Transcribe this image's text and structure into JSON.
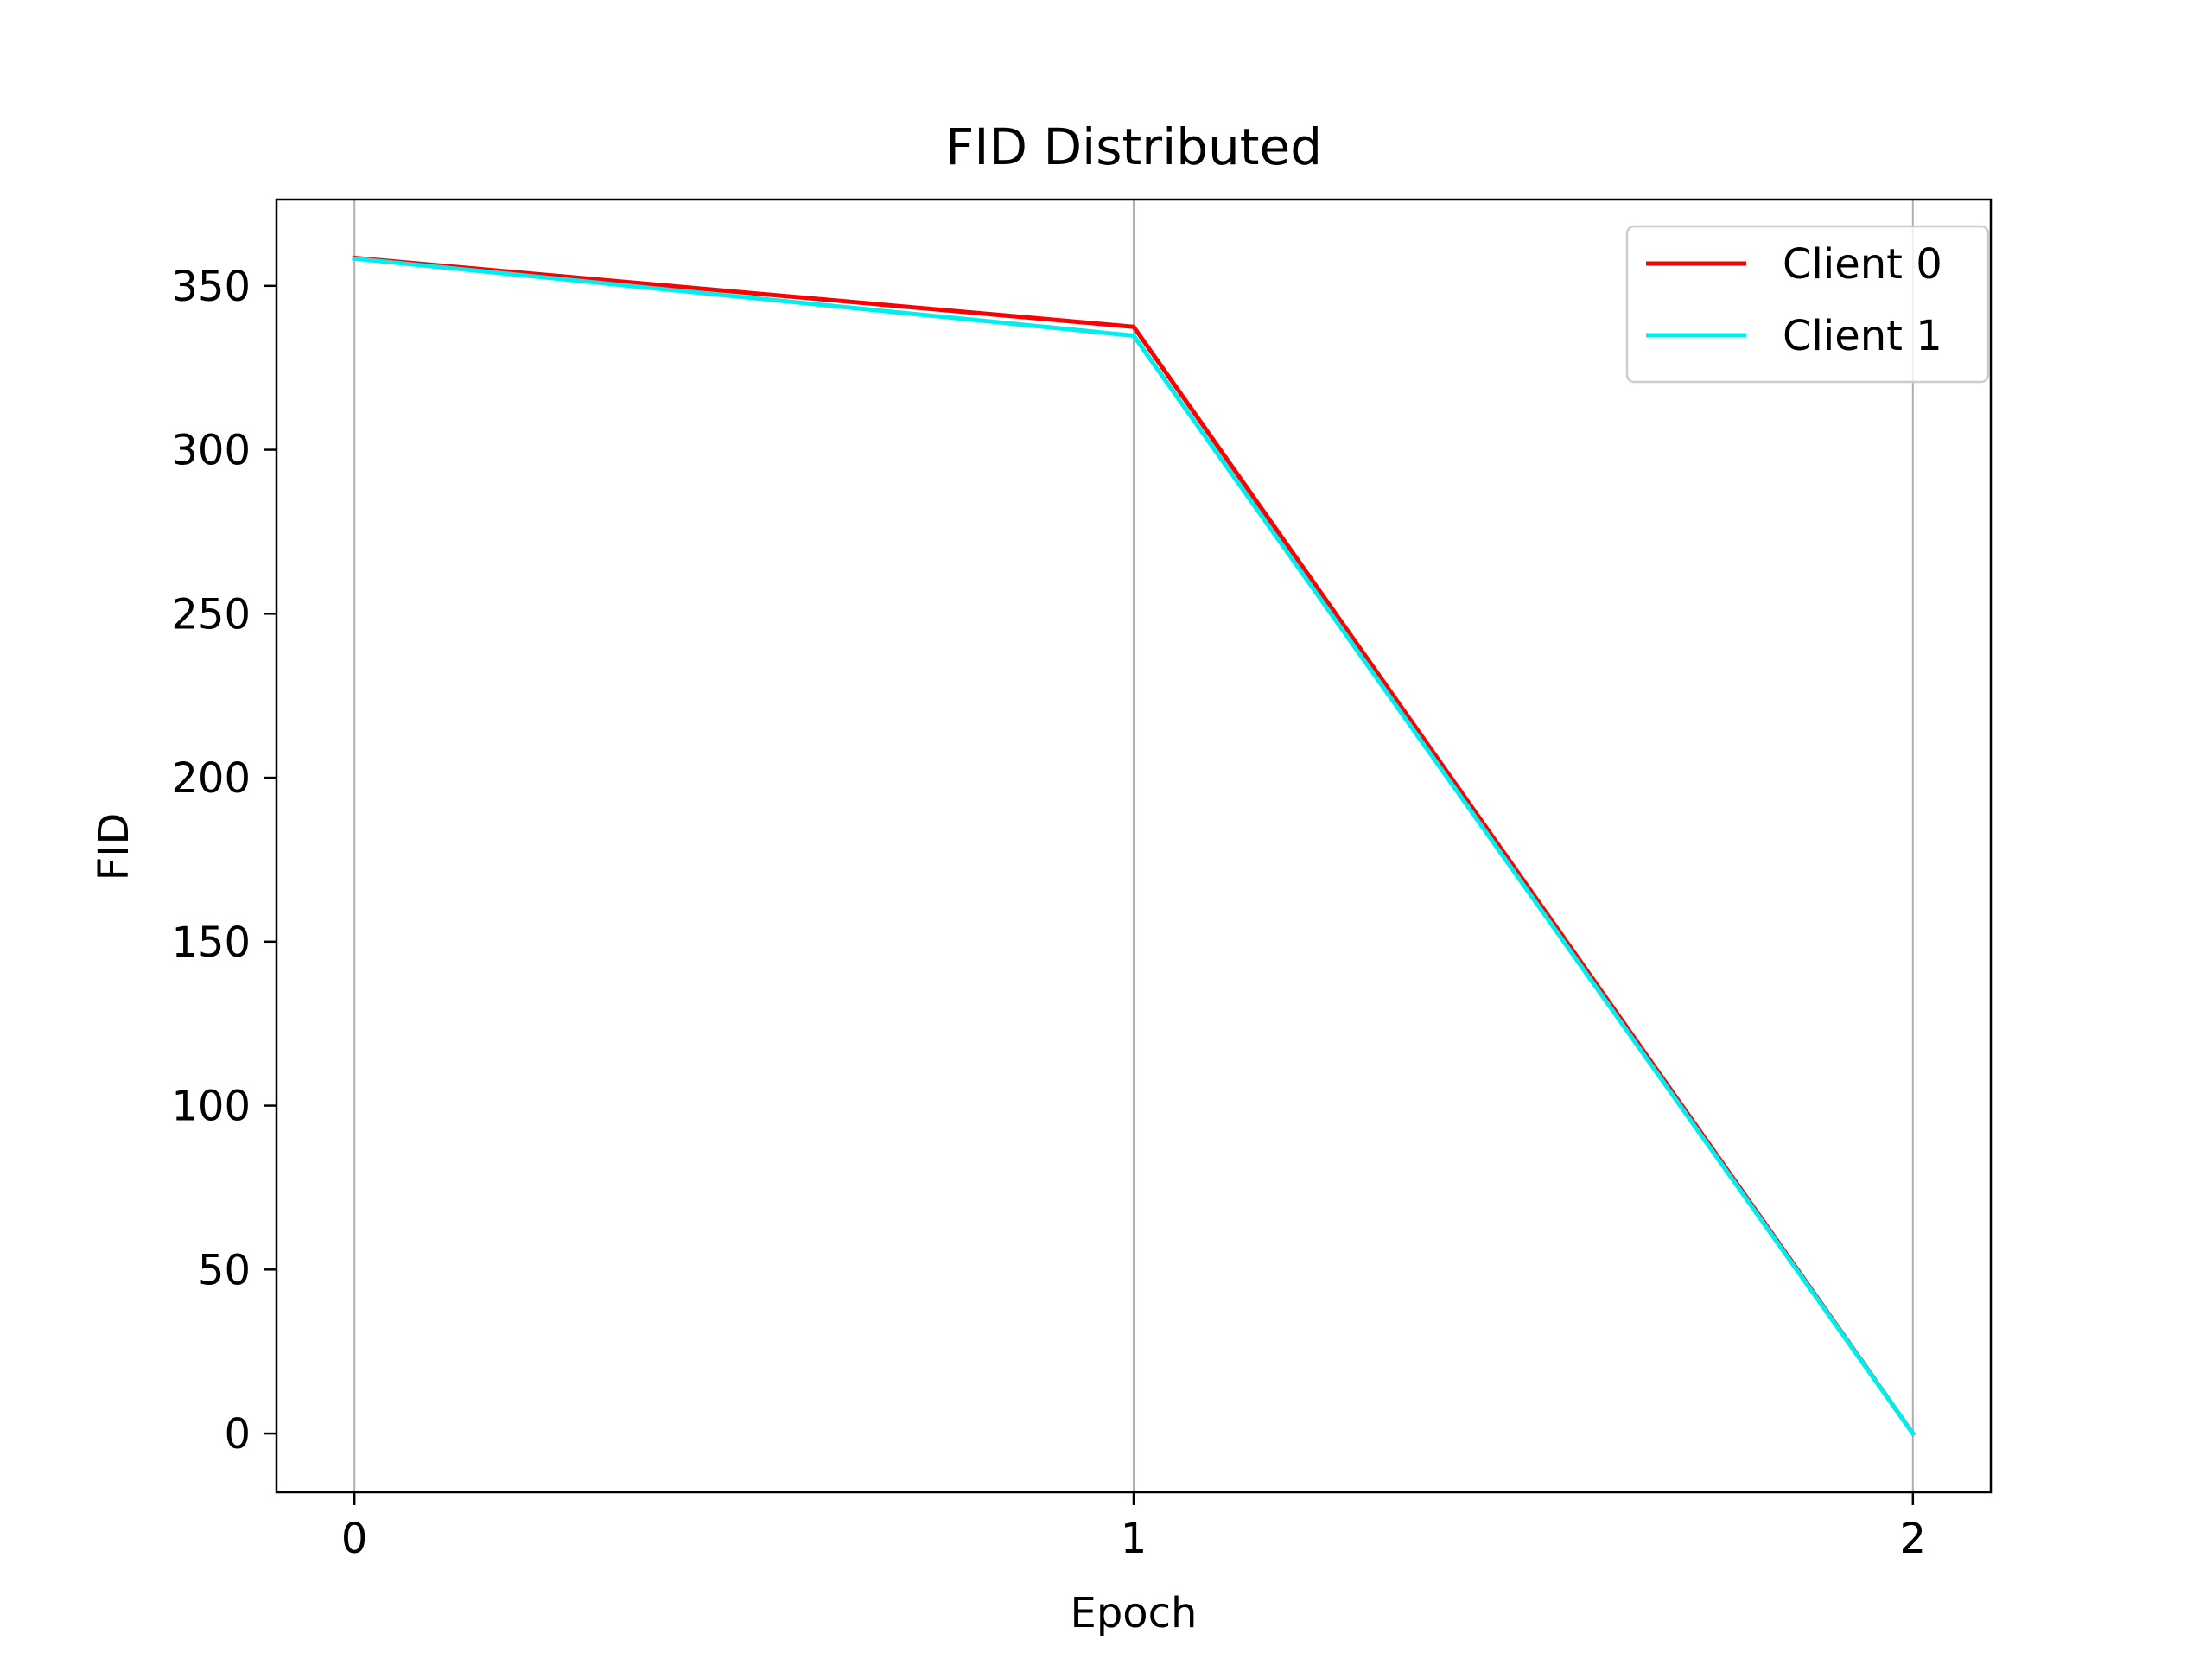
{
  "chart_data": {
    "type": "line",
    "title": "FID Distributed",
    "xlabel": "Epoch",
    "ylabel": "FID",
    "x": [
      0,
      1,
      2
    ],
    "xticks": [
      "0",
      "1",
      "2"
    ],
    "yticks": [
      "0",
      "50",
      "100",
      "150",
      "200",
      "250",
      "300",
      "350"
    ],
    "xlim": [
      -0.1,
      2.1
    ],
    "ylim": [
      -17.9,
      376.3
    ],
    "grid": "vertical",
    "legend_position": "top-right",
    "series": [
      {
        "name": "Client 0",
        "color": "#ff0000",
        "values": [
          358.5,
          337.5,
          0
        ]
      },
      {
        "name": "Client 1",
        "color": "#00eeee",
        "values": [
          358.3,
          334.8,
          0
        ]
      }
    ]
  }
}
